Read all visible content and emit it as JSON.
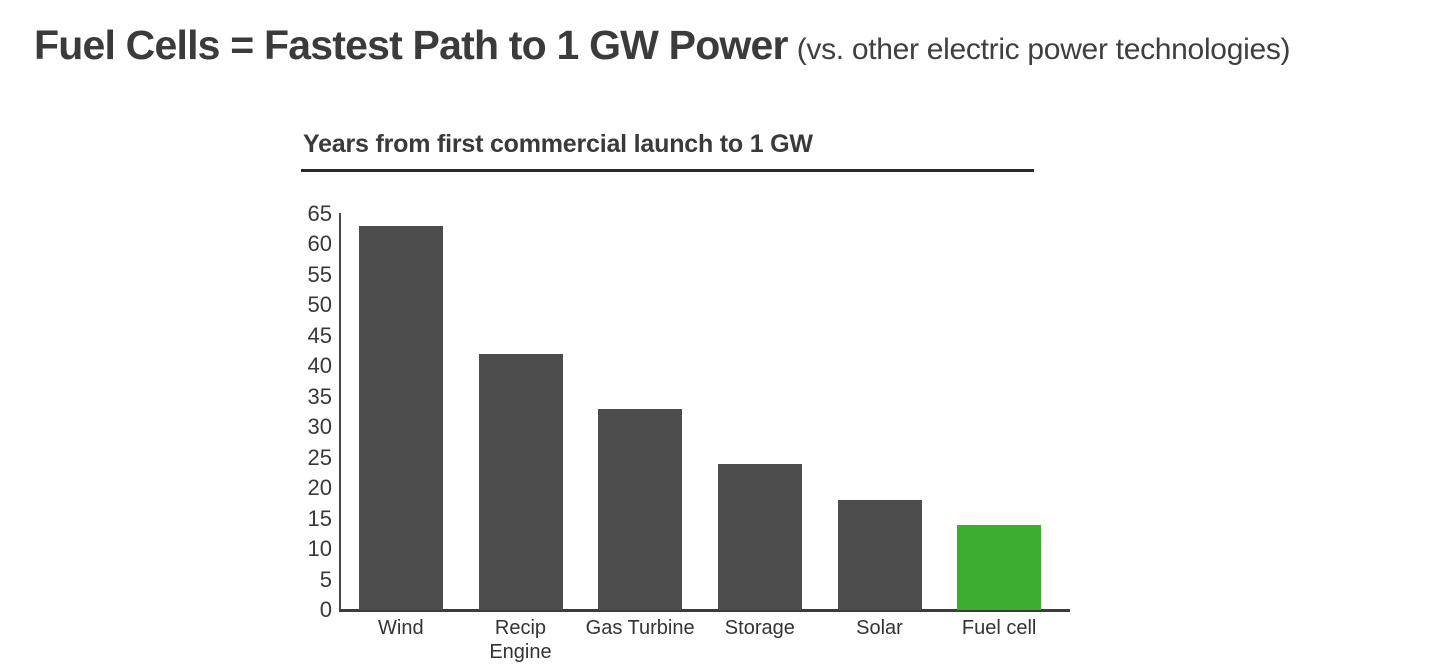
{
  "page": {
    "title_main": "Fuel Cells = Fastest Path to 1 GW Power",
    "title_qualifier": "(vs. other electric power technologies)"
  },
  "chart_data": {
    "type": "bar",
    "title": "Years from first commercial launch to 1 GW",
    "categories": [
      "Wind",
      "Recip\nEngine",
      "Gas Turbine",
      "Storage",
      "Solar",
      "Fuel cell"
    ],
    "values": [
      63,
      42,
      33,
      24,
      18,
      14
    ],
    "xlabel": "",
    "ylabel": "",
    "ylim": [
      0,
      65
    ],
    "yticks": [
      65,
      60,
      55,
      50,
      45,
      40,
      35,
      30,
      25,
      20,
      15,
      10,
      5,
      0
    ],
    "grid": false,
    "legend": false,
    "default_bar_color": "#4d4d4d",
    "highlight_bar_color": "#3cad2f",
    "highlight_category": "Fuel cell",
    "bar_colors": [
      "#4d4d4d",
      "#4d4d4d",
      "#4d4d4d",
      "#4d4d4d",
      "#4d4d4d",
      "#3cad2f"
    ]
  },
  "colors": {
    "background": "#ffffff",
    "title_text": "#3b3b3b",
    "axis": "#3c3c3c"
  }
}
